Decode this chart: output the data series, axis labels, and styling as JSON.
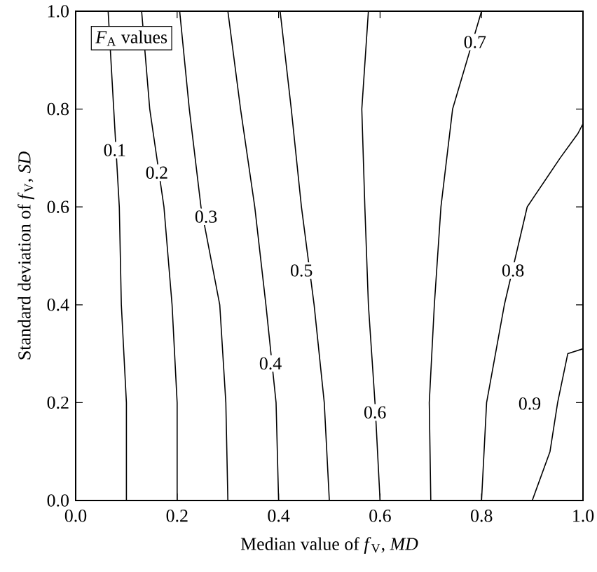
{
  "chart_data": {
    "type": "line",
    "xlabel": "Median value of *f*$_{V}$, *MD*",
    "ylabel": "Standard deviation of *f*$_{V}$, *SD*",
    "xlim": [
      0,
      1
    ],
    "ylim": [
      0,
      1
    ],
    "xticks": [
      {
        "value": 0,
        "label": "0.0"
      },
      {
        "value": 0.2,
        "label": "0.2"
      },
      {
        "value": 0.4,
        "label": "0.4"
      },
      {
        "value": 0.6,
        "label": "0.6"
      },
      {
        "value": 0.8,
        "label": "0.8"
      },
      {
        "value": 1,
        "label": "1.0"
      }
    ],
    "yticks": [
      {
        "value": 0,
        "label": "0.0"
      },
      {
        "value": 0.2,
        "label": "0.2"
      },
      {
        "value": 0.4,
        "label": "0.4"
      },
      {
        "value": 0.6,
        "label": "0.6"
      },
      {
        "value": 0.8,
        "label": "0.8"
      },
      {
        "value": 1,
        "label": "1.0"
      }
    ],
    "series": [
      {
        "color": "#000000",
        "x": [
          0.1,
          0.1,
          0.09,
          0.086,
          0.075,
          0.064
        ],
        "values": [
          0,
          0.2,
          0.4,
          0.6,
          0.8,
          1.0
        ]
      },
      {
        "color": "#000000",
        "x": [
          0.2,
          0.2,
          0.19,
          0.174,
          0.146,
          0.13
        ],
        "values": [
          0,
          0.2,
          0.4,
          0.6,
          0.8,
          1.0
        ]
      },
      {
        "color": "#000000",
        "x": [
          0.3,
          0.296,
          0.284,
          0.247,
          0.224,
          0.205
        ],
        "values": [
          0,
          0.2,
          0.4,
          0.6,
          0.8,
          1.0
        ]
      },
      {
        "color": "#000000",
        "x": [
          0.4,
          0.395,
          0.375,
          0.353,
          0.325,
          0.3
        ],
        "values": [
          0,
          0.2,
          0.4,
          0.6,
          0.8,
          1.0
        ]
      },
      {
        "color": "#000000",
        "x": [
          0.5,
          0.49,
          0.47,
          0.445,
          0.425,
          0.403
        ],
        "values": [
          0,
          0.2,
          0.4,
          0.6,
          0.8,
          1.0
        ]
      },
      {
        "color": "#000000",
        "x": [
          0.6,
          0.59,
          0.577,
          0.57,
          0.564,
          0.577
        ],
        "values": [
          0,
          0.2,
          0.4,
          0.6,
          0.8,
          1.0
        ]
      },
      {
        "color": "#000000",
        "x": [
          0.7,
          0.697,
          0.707,
          0.72,
          0.743,
          0.8
        ],
        "values": [
          0,
          0.2,
          0.4,
          0.6,
          0.8,
          1.0
        ]
      },
      {
        "color": "#000000",
        "x": [
          0.8,
          0.81,
          0.845,
          0.89,
          0.955,
          0.99,
          1.0
        ],
        "values": [
          0,
          0.2,
          0.4,
          0.6,
          0.7,
          0.75,
          0.77
        ]
      },
      {
        "color": "#000000",
        "x": [
          0.9,
          0.935,
          0.95,
          0.97,
          1.0
        ],
        "values": [
          0,
          0.1,
          0.2,
          0.3,
          0.31
        ]
      }
    ],
    "annotations": [
      "*F*$_{A}$ values",
      {
        "text": "0.1",
        "x": 0.077,
        "y": 0.716
      },
      {
        "text": "0.2",
        "x": 0.16,
        "y": 0.67
      },
      {
        "text": "0.3",
        "x": 0.257,
        "y": 0.58
      },
      {
        "text": "0.4",
        "x": 0.384,
        "y": 0.28
      },
      {
        "text": "0.5",
        "x": 0.445,
        "y": 0.47
      },
      {
        "text": "0.6",
        "x": 0.59,
        "y": 0.18
      },
      {
        "text": "0.7",
        "x": 0.787,
        "y": 0.937
      },
      {
        "text": "0.8",
        "x": 0.862,
        "y": 0.47
      },
      {
        "text": "0.9",
        "x": 0.895,
        "y": 0.198
      }
    ]
  }
}
